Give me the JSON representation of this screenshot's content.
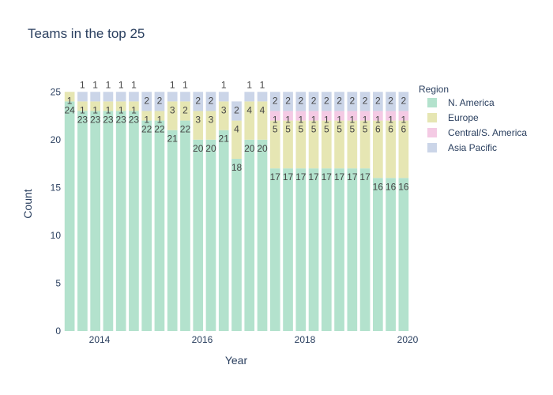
{
  "chart_data": {
    "type": "bar",
    "title": "Teams in the top 25",
    "xlabel": "Year",
    "ylabel": "Count",
    "ylim": [
      0,
      25
    ],
    "yticks": [
      0,
      5,
      10,
      15,
      20,
      25
    ],
    "xticks": [
      "2014",
      "2016",
      "2018",
      "2020"
    ],
    "legend_title": "Region",
    "legend_position": "right",
    "grid": false,
    "series": [
      {
        "name": "N. America",
        "color": "#b3e2cd",
        "values": [
          24,
          23,
          23,
          23,
          23,
          23,
          22,
          22,
          21,
          22,
          20,
          20,
          21,
          18,
          20,
          20,
          17,
          17,
          17,
          17,
          17,
          17,
          17,
          17,
          16,
          16,
          16
        ]
      },
      {
        "name": "Europe",
        "color": "#e6e6b3",
        "values": [
          1,
          1,
          1,
          1,
          1,
          1,
          1,
          1,
          3,
          2,
          3,
          3,
          3,
          4,
          4,
          4,
          5,
          5,
          5,
          5,
          5,
          5,
          5,
          5,
          6,
          6,
          6
        ]
      },
      {
        "name": "Central/S. America",
        "color": "#f4cae4",
        "values": [
          0,
          0,
          0,
          0,
          0,
          0,
          0,
          0,
          0,
          0,
          0,
          0,
          0,
          0,
          0,
          0,
          1,
          1,
          1,
          1,
          1,
          1,
          1,
          1,
          1,
          1,
          1
        ]
      },
      {
        "name": "Asia Pacific",
        "color": "#cbd5e8",
        "values": [
          0,
          1,
          1,
          1,
          1,
          1,
          2,
          2,
          1,
          1,
          2,
          2,
          1,
          2,
          1,
          1,
          2,
          2,
          2,
          2,
          2,
          2,
          2,
          2,
          2,
          2,
          2
        ]
      }
    ]
  }
}
